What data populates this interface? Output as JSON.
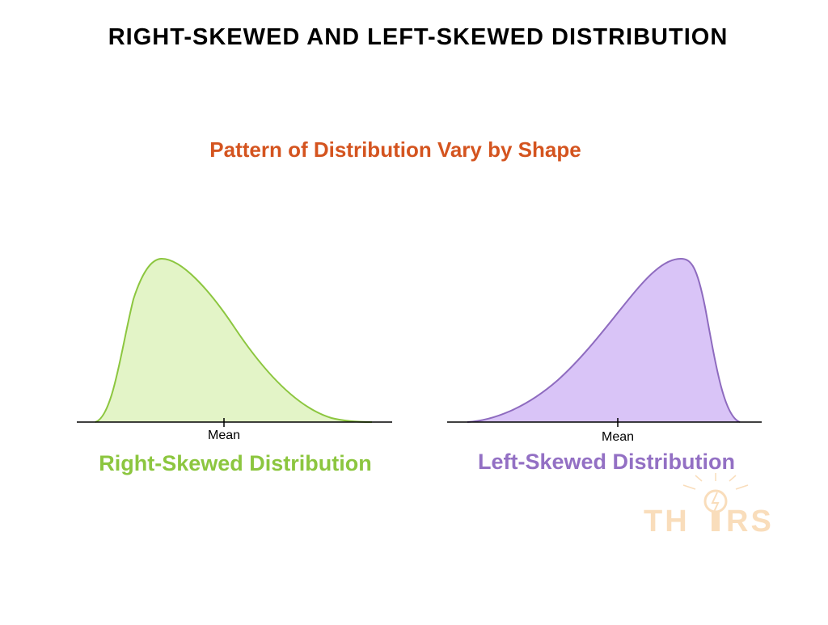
{
  "title": "RIGHT-SKEWED AND LEFT-SKEWED DISTRIBUTION",
  "subtitle": "Pattern of Distribution Vary by Shape",
  "panels": [
    {
      "mean_label": "Mean",
      "caption": "Right-Skewed Distribution"
    },
    {
      "mean_label": "Mean",
      "caption": "Left-Skewed Distribution"
    }
  ],
  "logo": {
    "left": "TH",
    "right": "RS"
  }
}
